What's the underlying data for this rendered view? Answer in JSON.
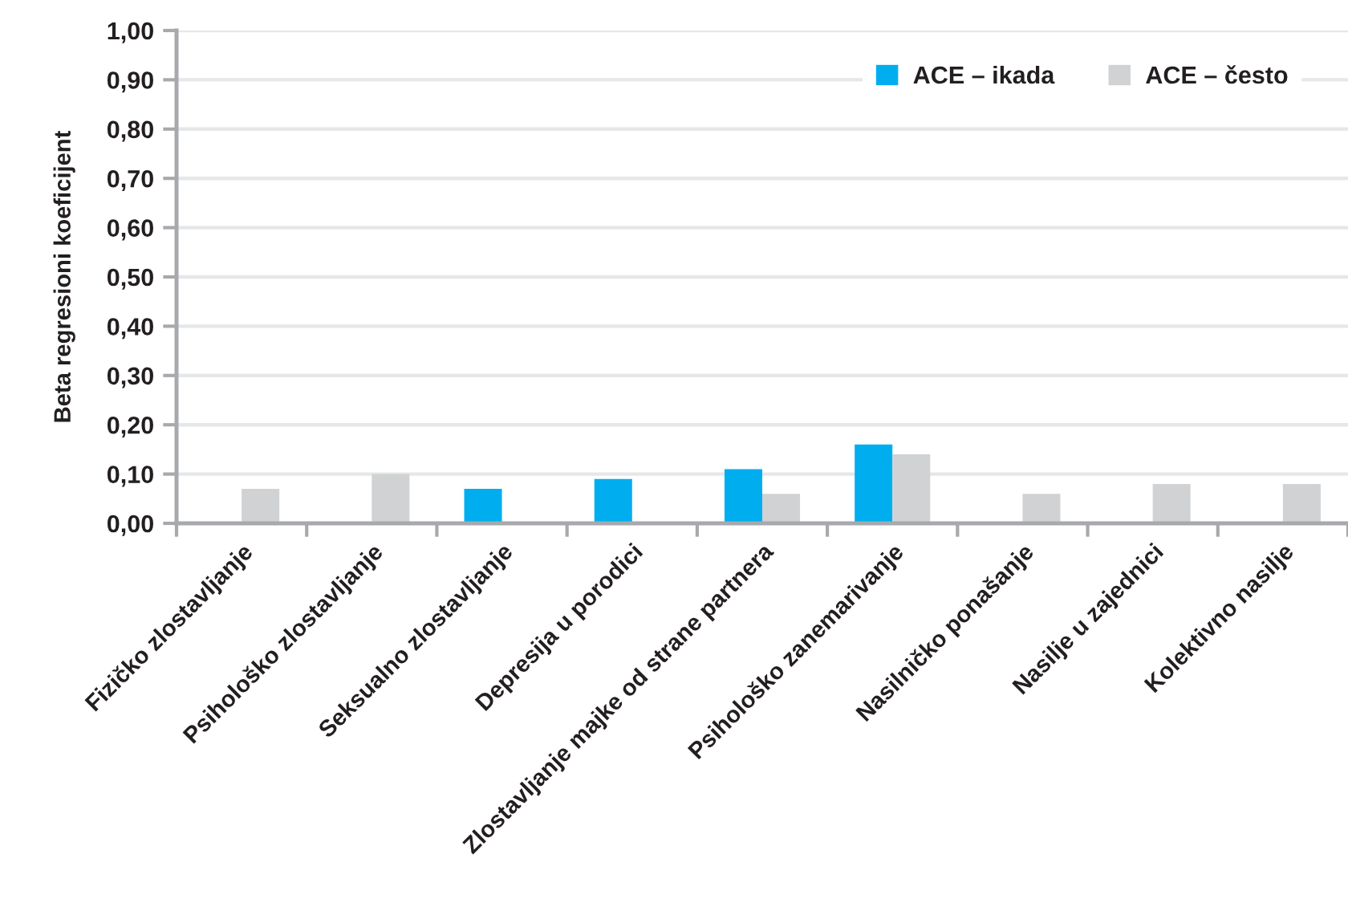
{
  "chart_data": {
    "type": "bar",
    "ylabel": "Beta regresioni koeficijent",
    "categories": [
      "Fizičko zlostavljanje",
      "Psihološko zlostavljanje",
      "Seksualno zlostavljanje",
      "Depresija u porodici",
      "Zlostavljanje majke od strane partnera",
      "Psihološko zanemarivanje",
      "Nasilničko ponašanje",
      "Nasilje u zajednici",
      "Kolektivno nasilje"
    ],
    "series": [
      {
        "name": "ACE – ikada",
        "color": "#00aeef",
        "values": [
          null,
          null,
          0.07,
          0.09,
          0.11,
          0.16,
          null,
          null,
          null
        ]
      },
      {
        "name": "ACE – često",
        "color": "#d1d2d4",
        "values": [
          0.07,
          0.1,
          null,
          null,
          0.06,
          0.14,
          0.06,
          0.08,
          0.08
        ]
      }
    ],
    "ylim": [
      0,
      1
    ],
    "yticks": [
      {
        "value": 0,
        "label": "0,00"
      },
      {
        "value": 0.1,
        "label": "0,10"
      },
      {
        "value": 0.2,
        "label": "0,20"
      },
      {
        "value": 0.3,
        "label": "0,30"
      },
      {
        "value": 0.4,
        "label": "0,40"
      },
      {
        "value": 0.5,
        "label": "0,50"
      },
      {
        "value": 0.6,
        "label": "0,60"
      },
      {
        "value": 0.7,
        "label": "0,70"
      },
      {
        "value": 0.8,
        "label": "0,80"
      },
      {
        "value": 0.9,
        "label": "0,90"
      },
      {
        "value": 1,
        "label": "1,00"
      }
    ],
    "grid": "y",
    "legend": "top right"
  }
}
